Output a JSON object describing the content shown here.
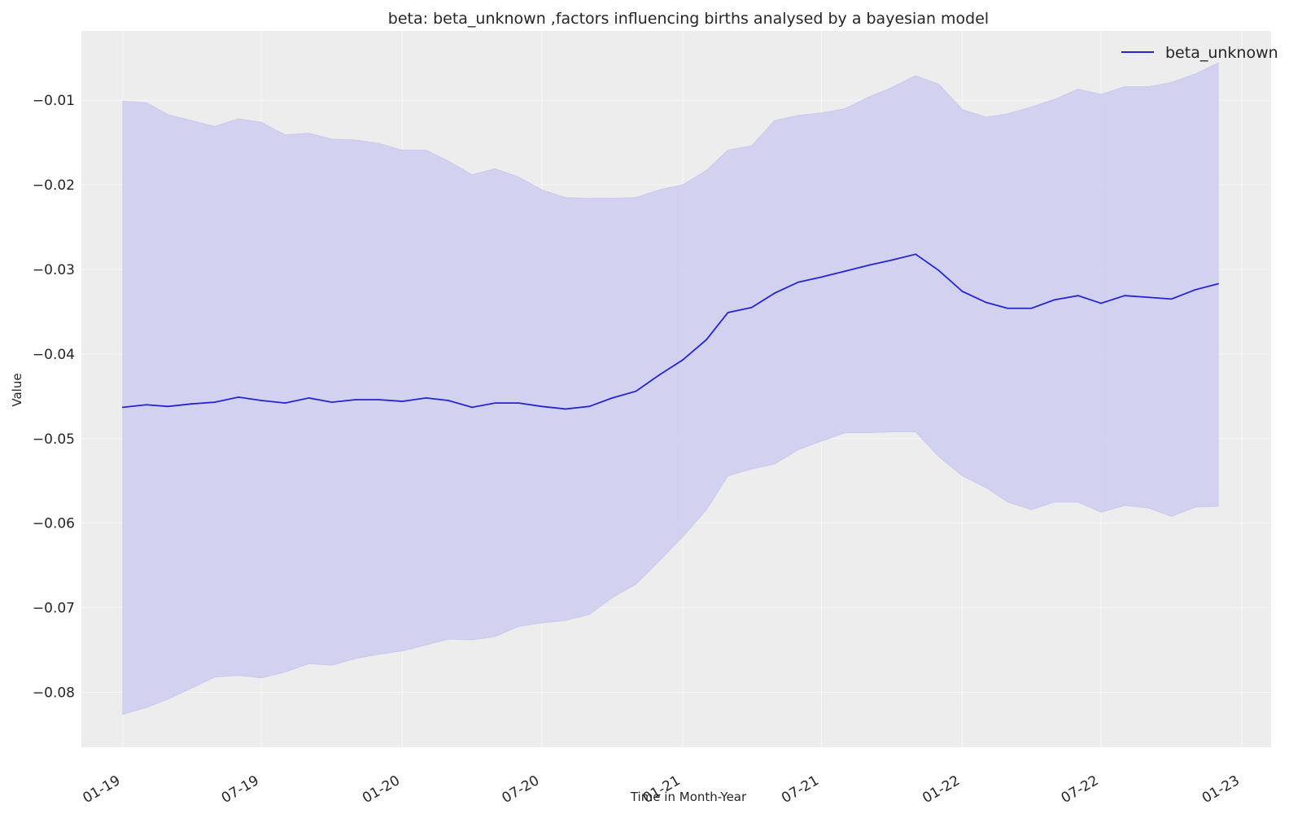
{
  "chart_data": {
    "type": "line",
    "title": "beta: beta_unknown ,factors influencing births analysed by a bayesian model",
    "xlabel": "Time in Month-Year",
    "ylabel": "Value",
    "x_ticks": [
      "01-19",
      "07-19",
      "01-20",
      "07-20",
      "01-21",
      "07-21",
      "01-22",
      "07-22",
      "01-23"
    ],
    "y_ticks": [
      "−0.01",
      "−0.02",
      "−0.03",
      "−0.04",
      "−0.05",
      "−0.06",
      "−0.07",
      "−0.08"
    ],
    "ylim": [
      -0.0865,
      -0.0018
    ],
    "xlim": [
      "2018-11-08",
      "2023-02-08"
    ],
    "grid": true,
    "legend_position": "top-right",
    "colors": {
      "line": "#2424d6",
      "band": "#c8c8f0",
      "plot_bg": "#ededed",
      "grid": "#f7f7f7"
    },
    "x": [
      "2019-01",
      "2019-02",
      "2019-03",
      "2019-04",
      "2019-05",
      "2019-06",
      "2019-07",
      "2019-08",
      "2019-09",
      "2019-10",
      "2019-11",
      "2019-12",
      "2020-01",
      "2020-02",
      "2020-03",
      "2020-04",
      "2020-05",
      "2020-06",
      "2020-07",
      "2020-08",
      "2020-09",
      "2020-10",
      "2020-11",
      "2020-12",
      "2021-01",
      "2021-02",
      "2021-03",
      "2021-04",
      "2021-05",
      "2021-06",
      "2021-07",
      "2021-08",
      "2021-09",
      "2021-10",
      "2021-11",
      "2021-12",
      "2022-01",
      "2022-02",
      "2022-03",
      "2022-04",
      "2022-05",
      "2022-06",
      "2022-07",
      "2022-08",
      "2022-09",
      "2022-10",
      "2022-11",
      "2022-12"
    ],
    "series": [
      {
        "name": "beta_unknown",
        "values": [
          -0.0463,
          -0.046,
          -0.0462,
          -0.0459,
          -0.0457,
          -0.0451,
          -0.0455,
          -0.0458,
          -0.0452,
          -0.0457,
          -0.0454,
          -0.0454,
          -0.0456,
          -0.0452,
          -0.0455,
          -0.0463,
          -0.0458,
          -0.0458,
          -0.0462,
          -0.0465,
          -0.0462,
          -0.0452,
          -0.0444,
          -0.0425,
          -0.0407,
          -0.0383,
          -0.0351,
          -0.0345,
          -0.0328,
          -0.0315,
          -0.0309,
          -0.0302,
          -0.0295,
          -0.0289,
          -0.0282,
          -0.0301,
          -0.0326,
          -0.0339,
          -0.0346,
          -0.0346,
          -0.0336,
          -0.0331,
          -0.034,
          -0.0331,
          -0.0333,
          -0.0335,
          -0.0324,
          -0.0317
        ],
        "lower": [
          -0.0826,
          -0.0818,
          -0.0808,
          -0.0795,
          -0.0782,
          -0.078,
          -0.0783,
          -0.0776,
          -0.0766,
          -0.0768,
          -0.076,
          -0.0755,
          -0.0751,
          -0.0744,
          -0.0737,
          -0.0738,
          -0.0734,
          -0.0722,
          -0.0718,
          -0.0715,
          -0.0708,
          -0.0688,
          -0.0672,
          -0.0645,
          -0.0616,
          -0.0584,
          -0.0544,
          -0.0536,
          -0.053,
          -0.0513,
          -0.0503,
          -0.0493,
          -0.0493,
          -0.0492,
          -0.0492,
          -0.0521,
          -0.0544,
          -0.0558,
          -0.0575,
          -0.0584,
          -0.0575,
          -0.0575,
          -0.0587,
          -0.0579,
          -0.0582,
          -0.0592,
          -0.0581,
          -0.058
        ],
        "upper": [
          -0.0101,
          -0.0103,
          -0.0117,
          -0.0124,
          -0.0131,
          -0.0122,
          -0.0126,
          -0.0141,
          -0.0139,
          -0.0146,
          -0.0147,
          -0.0151,
          -0.0159,
          -0.0159,
          -0.0172,
          -0.0188,
          -0.0181,
          -0.0191,
          -0.0206,
          -0.0215,
          -0.0216,
          -0.0216,
          -0.0215,
          -0.0206,
          -0.02,
          -0.0183,
          -0.0159,
          -0.0154,
          -0.0124,
          -0.0118,
          -0.0115,
          -0.011,
          -0.0096,
          -0.0085,
          -0.0071,
          -0.0081,
          -0.0111,
          -0.012,
          -0.0116,
          -0.0108,
          -0.0099,
          -0.0087,
          -0.0093,
          -0.0084,
          -0.0084,
          -0.0079,
          -0.0069,
          -0.0056
        ]
      }
    ]
  }
}
